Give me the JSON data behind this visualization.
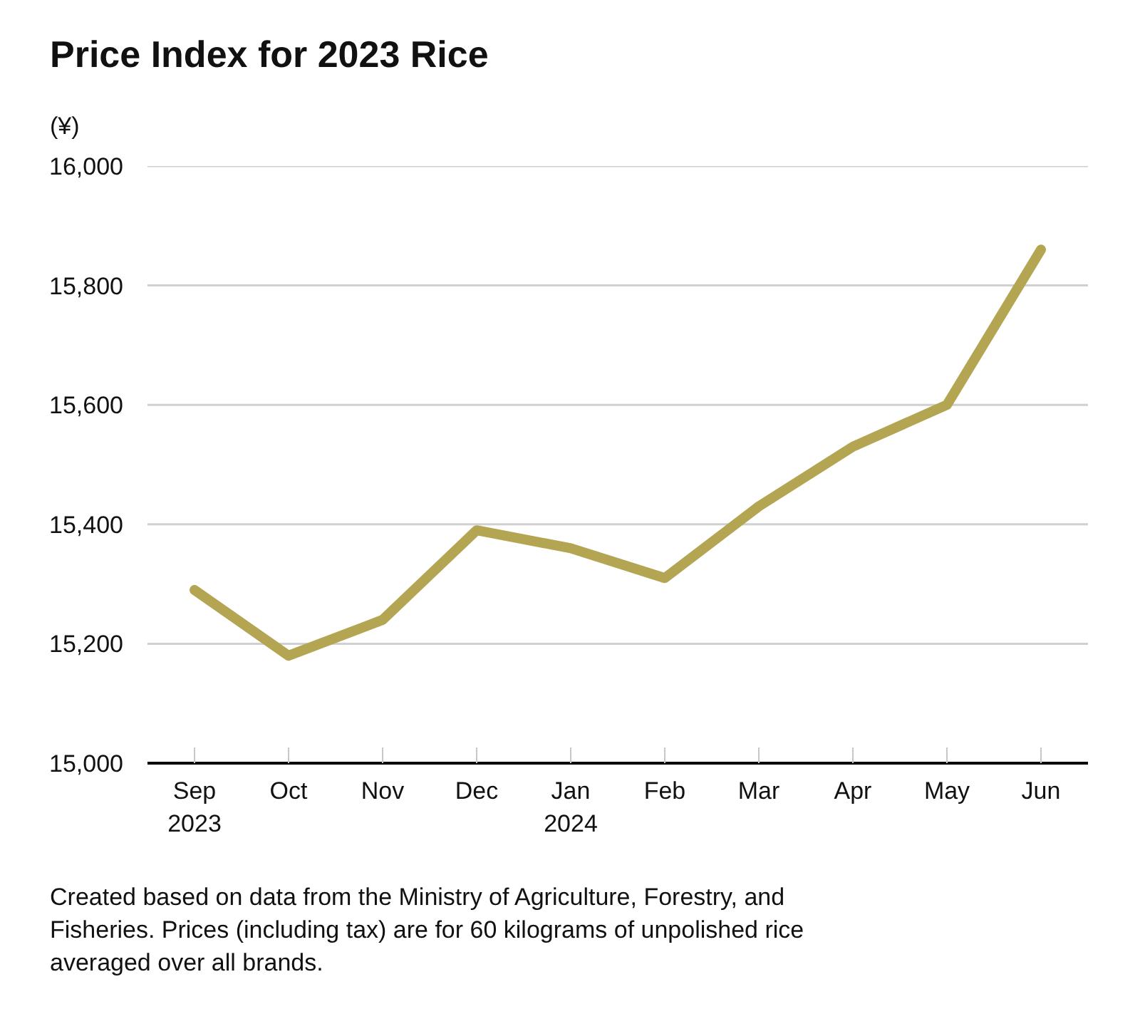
{
  "chart_data": {
    "type": "line",
    "title": "Price Index for 2023 Rice",
    "ylabel": "(¥)",
    "categories": [
      "Sep\n2023",
      "Oct",
      "Nov",
      "Dec",
      "Jan\n2024",
      "Feb",
      "Mar",
      "Apr",
      "May",
      "Jun"
    ],
    "values": [
      15290,
      15180,
      15240,
      15390,
      15360,
      15310,
      15430,
      15530,
      15600,
      15860
    ],
    "color": "#b4a553",
    "line_style": "solid",
    "grid": "y",
    "ylim": [
      15000,
      16000
    ],
    "yticks": [
      {
        "value": 15000,
        "label": "15,000"
      },
      {
        "value": 15200,
        "label": "15,200"
      },
      {
        "value": 15400,
        "label": "15,400"
      },
      {
        "value": 15600,
        "label": "15,600"
      },
      {
        "value": 15800,
        "label": "15,800"
      },
      {
        "value": 16000,
        "label": "16,000"
      }
    ],
    "annotations": [
      "Created based on data from the Ministry of Agriculture, Forestry, and Fisheries. Prices (including tax) are for 60 kilograms of unpolished rice averaged over all brands."
    ]
  }
}
